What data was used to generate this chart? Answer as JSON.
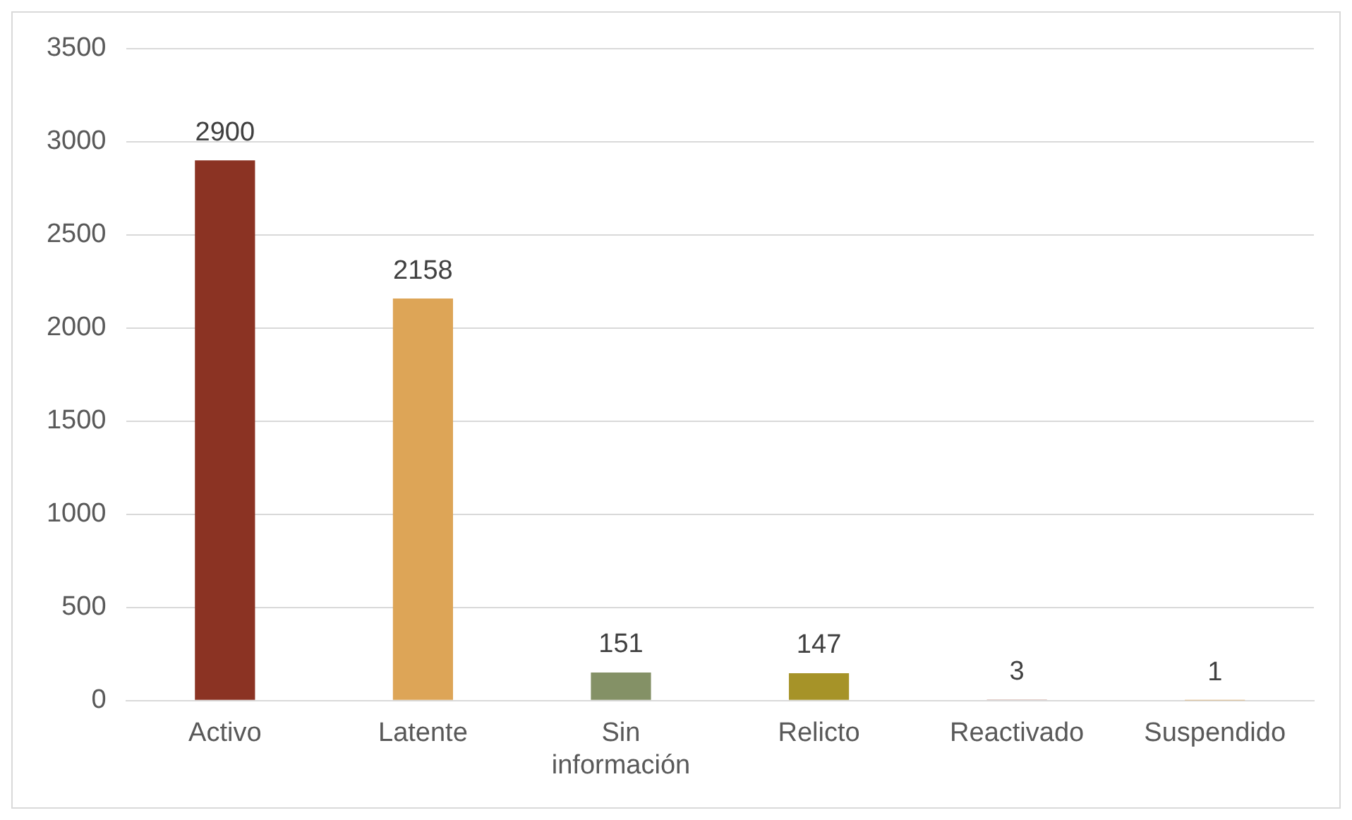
{
  "chart_data": {
    "type": "bar",
    "categories": [
      "Activo",
      "Latente",
      "Sin información",
      "Relicto",
      "Reactivado",
      "Suspendido"
    ],
    "values": [
      2900,
      2158,
      151,
      147,
      3,
      1
    ],
    "colors": [
      "#8b3323",
      "#dda557",
      "#849166",
      "#a69328",
      "#8b3323",
      "#dda557"
    ],
    "ylim": [
      0,
      3500
    ],
    "yticks": [
      0,
      500,
      1000,
      1500,
      2000,
      2500,
      3000,
      3500
    ],
    "grid": "y",
    "data_labels": true,
    "legend": false
  }
}
